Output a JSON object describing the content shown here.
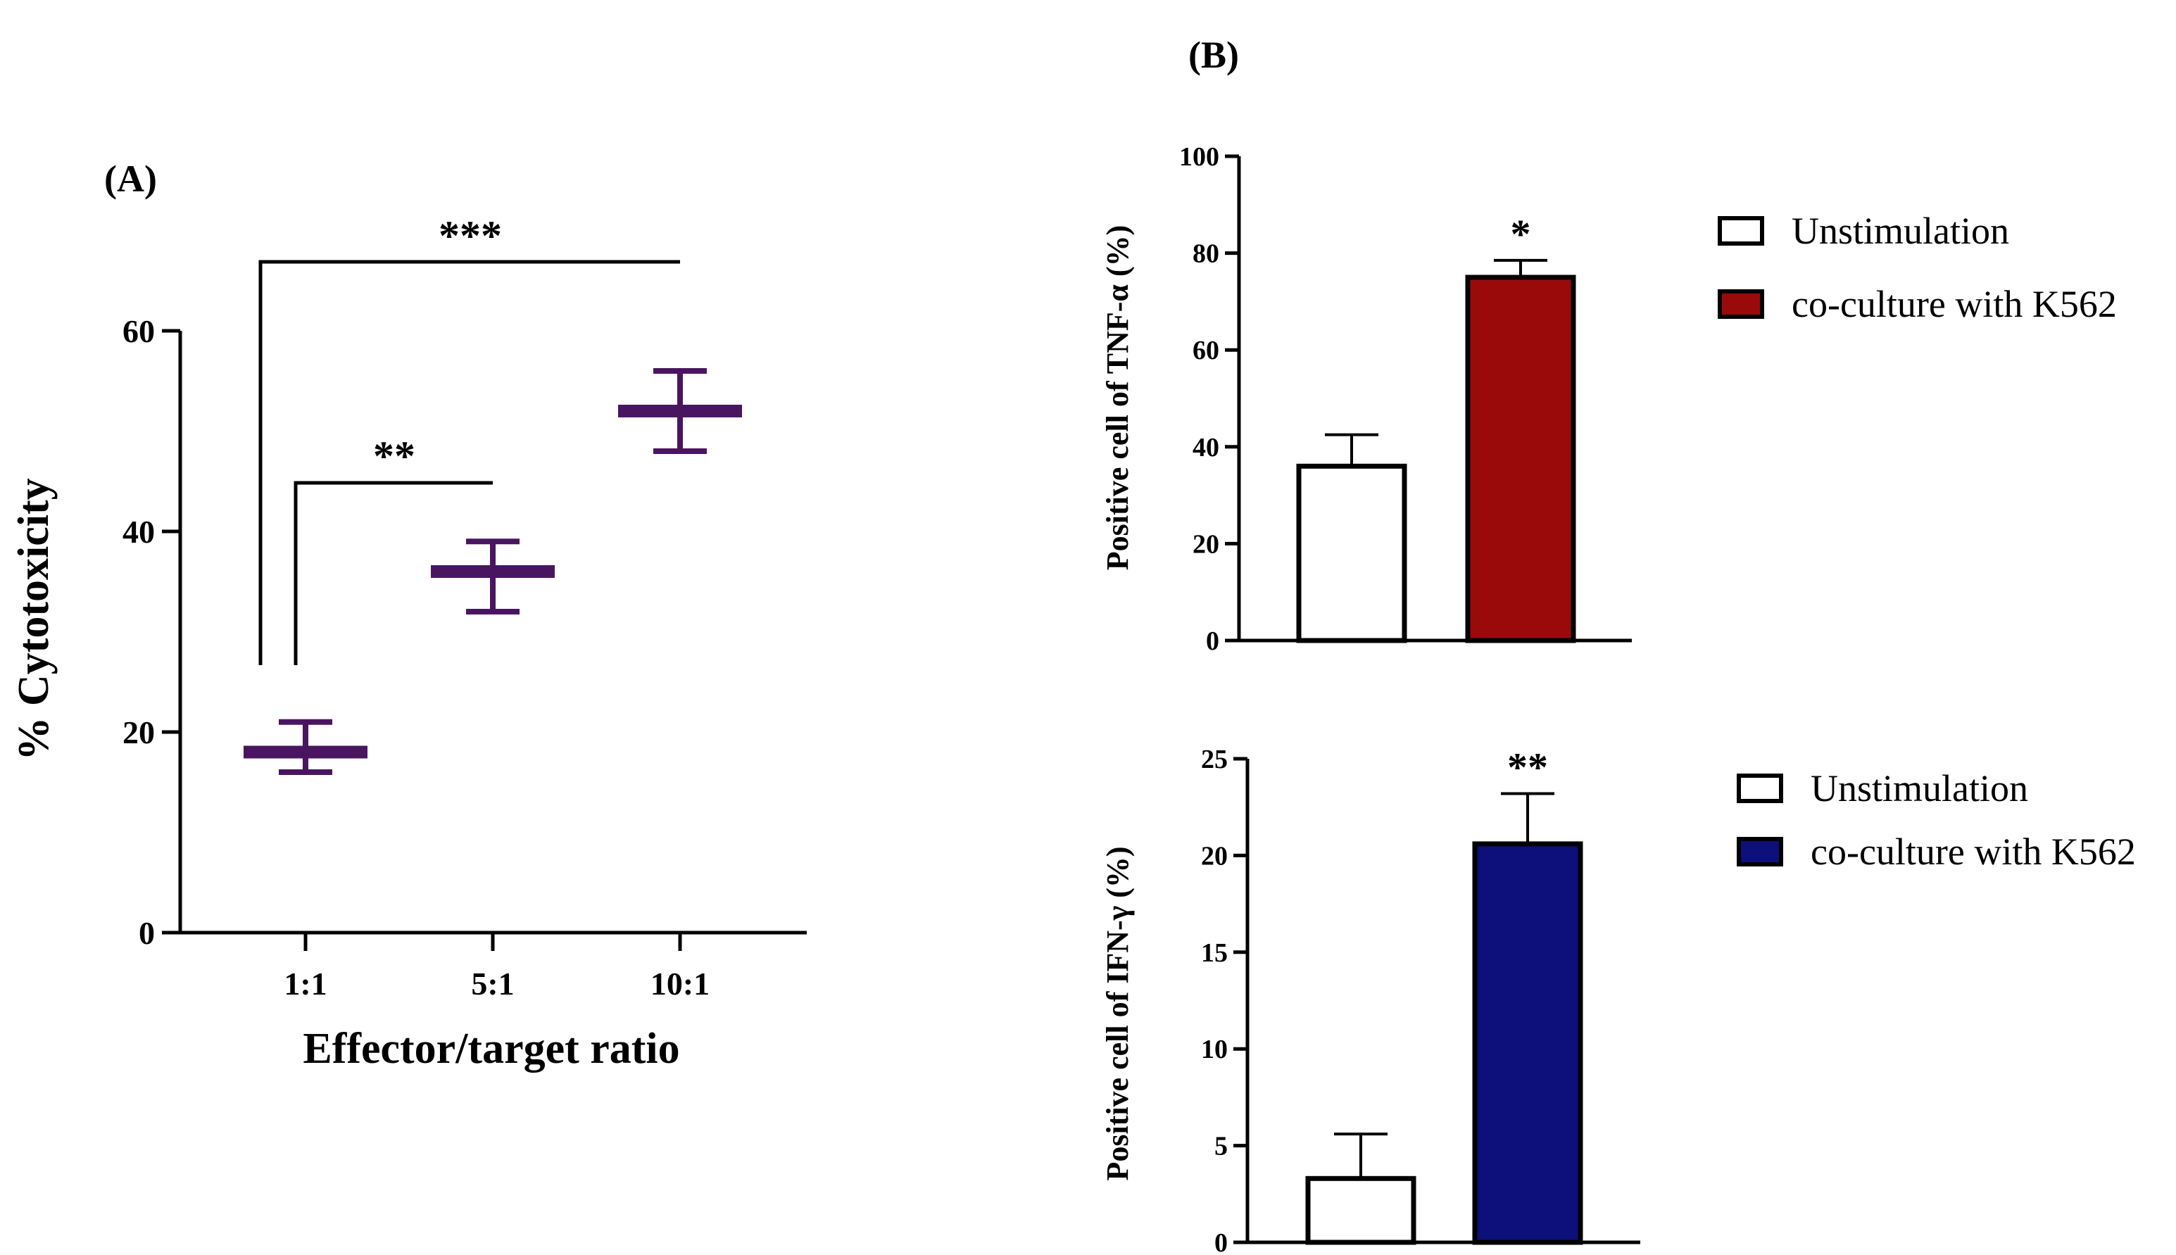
{
  "chart_data": [
    {
      "panel": "(A)",
      "type": "scatter",
      "title": "",
      "xlabel": "Effector/target ratio",
      "ylabel": "% Cytotoxicity",
      "categories": [
        "1:1",
        "5:1",
        "10:1"
      ],
      "values": [
        18,
        36,
        52
      ],
      "error_upper": [
        21,
        39,
        56
      ],
      "error_lower": [
        16,
        32,
        48
      ],
      "ylim": [
        0,
        60
      ],
      "yticks": [
        0,
        20,
        40,
        60
      ],
      "ytick_labels": [
        "0",
        "20",
        "40",
        "60"
      ],
      "color": "#4a1560",
      "significance": [
        {
          "from": "1:1",
          "to": "10:1",
          "label": "***"
        },
        {
          "from": "1:1",
          "to": "5:1",
          "label": "**"
        }
      ]
    },
    {
      "panel": "(B)",
      "type": "bar",
      "title": "",
      "xlabel": "",
      "ylabel": "Positive cell of TNF-α (%)",
      "categories": [
        "Unstimulation",
        "co-culture with K562"
      ],
      "values": [
        36,
        75
      ],
      "error_upper": [
        42.5,
        78.5
      ],
      "colors": [
        "#ffffff",
        "#9b0a0a"
      ],
      "ylim": [
        0,
        100
      ],
      "yticks": [
        0,
        20,
        40,
        60,
        80,
        100
      ],
      "ytick_labels": [
        "0",
        "20",
        "40",
        "60",
        "80",
        "100"
      ],
      "significance": [
        {
          "bar": 1,
          "label": "*"
        }
      ],
      "legend": [
        "Unstimulation",
        "co-culture with K562"
      ]
    },
    {
      "type": "bar",
      "title": "",
      "xlabel": "",
      "ylabel": "Positive cell of IFN-γ  (%)",
      "categories": [
        "Unstimulation",
        "co-culture with K562"
      ],
      "values": [
        3.3,
        20.6
      ],
      "error_upper": [
        5.6,
        23.2
      ],
      "colors": [
        "#ffffff",
        "#0d0f7a"
      ],
      "ylim": [
        0,
        25
      ],
      "yticks": [
        0,
        5,
        10,
        15,
        20,
        25
      ],
      "ytick_labels": [
        "0",
        "5",
        "10",
        "15",
        "20",
        "25"
      ],
      "significance": [
        {
          "bar": 1,
          "label": "**"
        }
      ],
      "legend": [
        "Unstimulation",
        "co-culture with K562"
      ]
    }
  ]
}
